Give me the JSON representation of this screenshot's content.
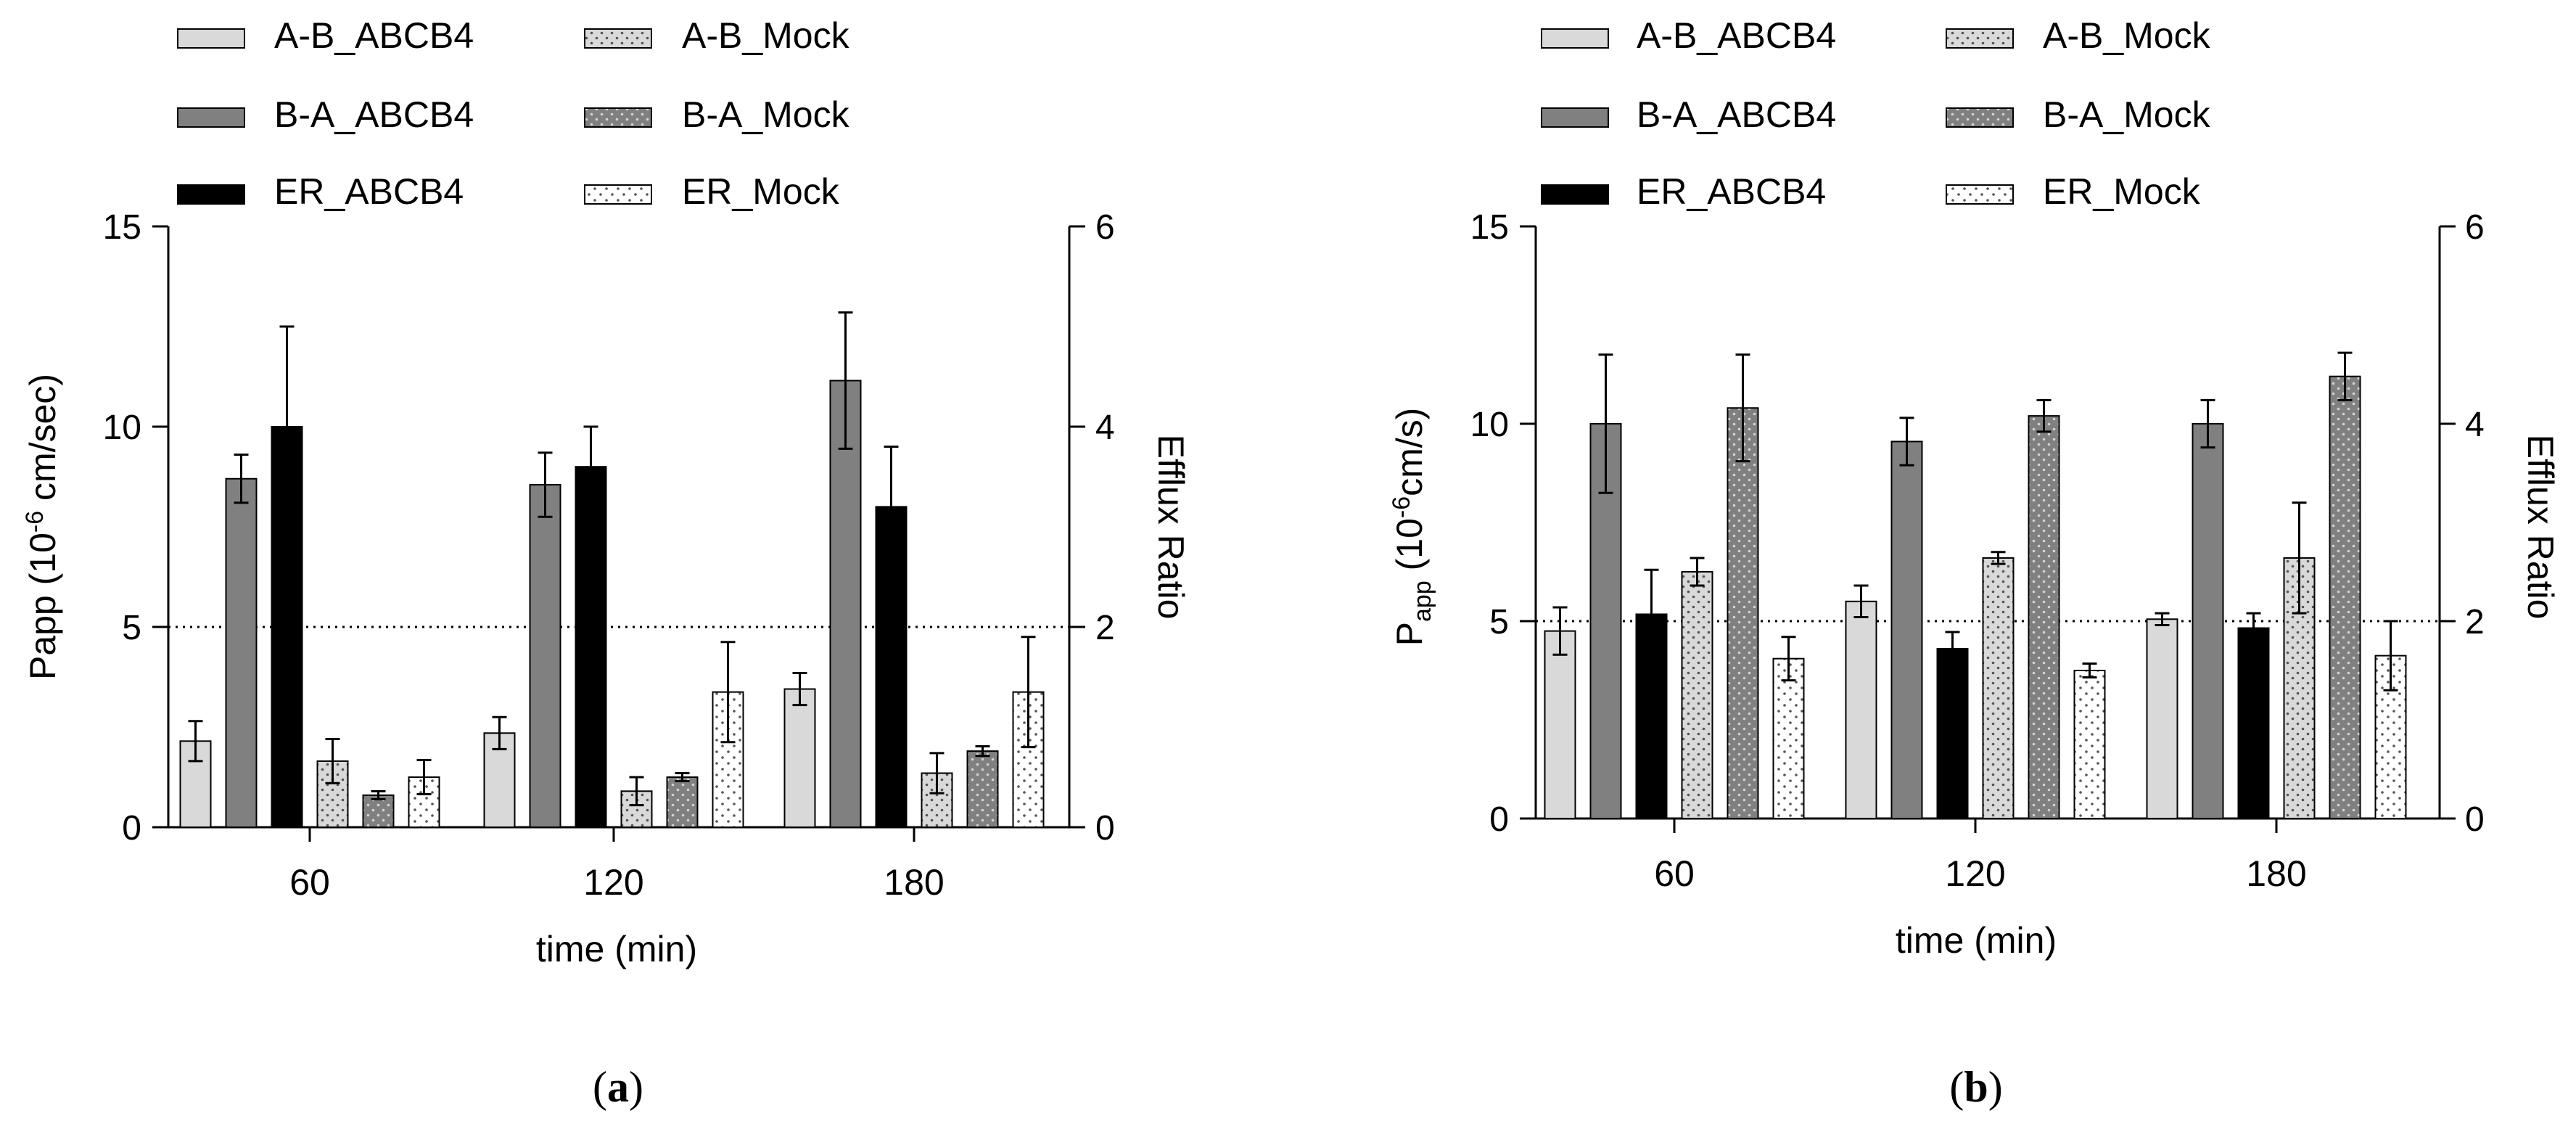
{
  "colors": {
    "ab_abcb4": "#d9d9d9",
    "ba_abcb4": "#808080",
    "er_abcb4": "#000000",
    "ab_mock": "#d9d9d9",
    "ba_mock": "#808080",
    "er_mock": "#ffffff"
  },
  "chart_data": [
    {
      "type": "bar",
      "panel_label": "a",
      "xlabel": "time (min)",
      "ylabel": "Papp (10-6 cm/sec)",
      "ylabel_parts": {
        "base": "Papp (10",
        "sup": "-6",
        "rest": " cm/sec)"
      },
      "y2label": "Efflux Ratio",
      "categories": [
        "60",
        "120",
        "180"
      ],
      "ylim": [
        0,
        15
      ],
      "yticks": [
        0,
        5,
        10,
        15
      ],
      "y2lim": [
        0,
        6
      ],
      "y2ticks": [
        0,
        2,
        4,
        6
      ],
      "reference_line_y": 5,
      "grid": false,
      "legend_position": "top",
      "series": [
        {
          "name": "A-B_ABCB4",
          "axis": "left",
          "pattern": "solid",
          "color": "#d9d9d9",
          "values": [
            2.15,
            2.35,
            3.45
          ],
          "errors": [
            0.5,
            0.4,
            0.4
          ]
        },
        {
          "name": "B-A_ABCB4",
          "axis": "left",
          "pattern": "solid",
          "color": "#808080",
          "values": [
            8.7,
            8.55,
            11.15
          ],
          "errors": [
            0.6,
            0.8,
            1.7
          ]
        },
        {
          "name": "ER_ABCB4",
          "axis": "right",
          "pattern": "solid",
          "color": "#000000",
          "values": [
            4.0,
            3.6,
            3.2
          ],
          "errors": [
            1.0,
            0.4,
            0.6
          ]
        },
        {
          "name": "A-B_Mock",
          "axis": "left",
          "pattern": "dotted",
          "color": "#d9d9d9",
          "values": [
            1.65,
            0.9,
            1.35
          ],
          "errors": [
            0.55,
            0.35,
            0.5
          ]
        },
        {
          "name": "B-A_Mock",
          "axis": "left",
          "pattern": "dotted",
          "color": "#808080",
          "values": [
            0.8,
            1.25,
            1.9
          ],
          "errors": [
            0.1,
            0.1,
            0.12
          ]
        },
        {
          "name": "ER_Mock",
          "axis": "right",
          "pattern": "dotted",
          "color": "#ffffff",
          "values": [
            0.5,
            1.35,
            1.35
          ],
          "errors": [
            0.17,
            0.5,
            0.55
          ]
        }
      ]
    },
    {
      "type": "bar",
      "panel_label": "b",
      "xlabel": "time (min)",
      "ylabel": "Papp (10-6cm/s)",
      "ylabel_parts": {
        "base": "P",
        "sub": "app",
        "mid": " (10",
        "sup": "-6",
        "rest": "cm/s)"
      },
      "y2label": "Efflux Ratio",
      "categories": [
        "60",
        "120",
        "180"
      ],
      "ylim": [
        0,
        15
      ],
      "yticks": [
        0,
        5,
        10,
        15
      ],
      "y2lim": [
        0,
        6
      ],
      "y2ticks": [
        0,
        2,
        4,
        6
      ],
      "reference_line_y": 5,
      "grid": false,
      "legend_position": "top",
      "series": [
        {
          "name": "A-B_ABCB4",
          "axis": "left",
          "pattern": "solid",
          "color": "#d9d9d9",
          "values": [
            4.75,
            5.5,
            5.05
          ],
          "errors": [
            0.6,
            0.4,
            0.15
          ]
        },
        {
          "name": "B-A_ABCB4",
          "axis": "left",
          "pattern": "solid",
          "color": "#808080",
          "values": [
            10.0,
            9.55,
            10.0
          ],
          "errors": [
            1.75,
            0.6,
            0.6
          ]
        },
        {
          "name": "ER_ABCB4",
          "axis": "right",
          "pattern": "solid",
          "color": "#000000",
          "values": [
            2.07,
            1.72,
            1.93
          ],
          "errors": [
            0.45,
            0.17,
            0.15
          ]
        },
        {
          "name": "A-B_Mock",
          "axis": "left",
          "pattern": "dotted",
          "color": "#d9d9d9",
          "values": [
            6.25,
            6.6,
            6.6
          ],
          "errors": [
            0.35,
            0.15,
            1.4
          ]
        },
        {
          "name": "B-A_Mock",
          "axis": "left",
          "pattern": "dotted",
          "color": "#808080",
          "values": [
            10.4,
            10.2,
            11.2
          ],
          "errors": [
            1.35,
            0.4,
            0.6
          ]
        },
        {
          "name": "ER_Mock",
          "axis": "right",
          "pattern": "dotted",
          "color": "#ffffff",
          "values": [
            1.62,
            1.5,
            1.65
          ],
          "errors": [
            0.22,
            0.07,
            0.35
          ]
        }
      ]
    }
  ]
}
